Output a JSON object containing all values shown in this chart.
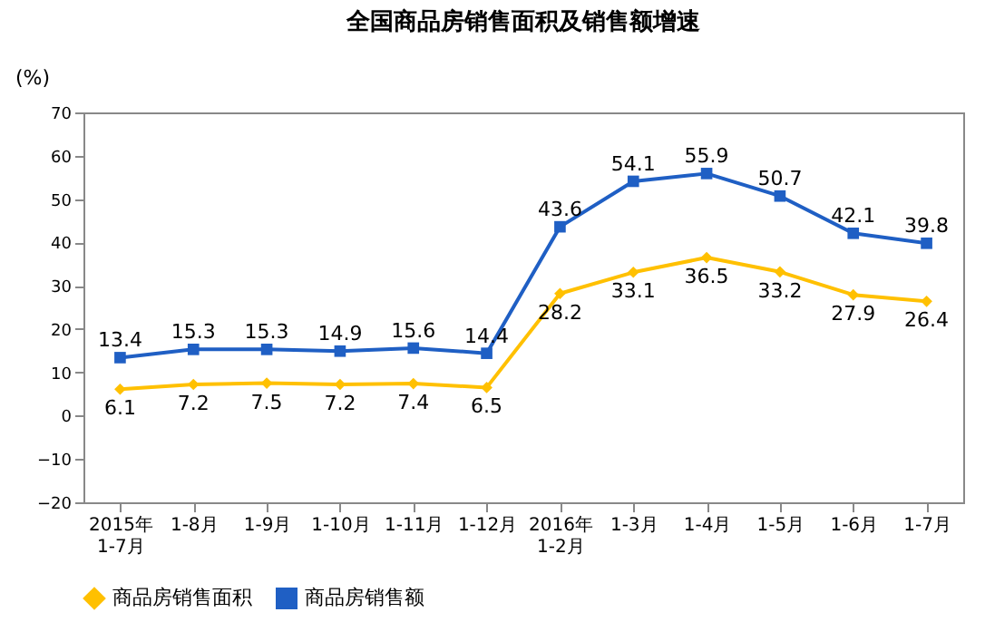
{
  "chart_data": {
    "type": "line",
    "title": "全国商品房销售面积及销售额增速",
    "ylabel": "(%)",
    "categories": [
      "2015年\n1-7月",
      "1-8月",
      "1-9月",
      "1-10月",
      "1-11月",
      "1-12月",
      "2016年\n1-2月",
      "1-3月",
      "1-4月",
      "1-5月",
      "1-6月",
      "1-7月"
    ],
    "series": [
      {
        "name": "商品房销售面积",
        "color": "#ffc000",
        "marker": "diamond",
        "values": [
          6.1,
          7.2,
          7.5,
          7.2,
          7.4,
          6.5,
          28.2,
          33.1,
          36.5,
          33.2,
          27.9,
          26.4
        ]
      },
      {
        "name": "商品房销售额",
        "color": "#1f5fc4",
        "marker": "square",
        "values": [
          13.4,
          15.3,
          15.3,
          14.9,
          15.6,
          14.4,
          43.6,
          54.1,
          55.9,
          50.7,
          42.1,
          39.8
        ]
      }
    ],
    "ylim": [
      -20,
      70
    ],
    "yticks": [
      -20,
      -10,
      0,
      10,
      20,
      30,
      40,
      50,
      60,
      70
    ],
    "grid": false,
    "legend": "bottom",
    "data_labels": true
  }
}
